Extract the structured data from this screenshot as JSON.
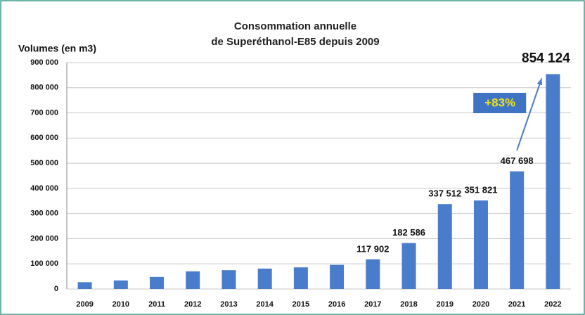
{
  "chart_data": {
    "type": "bar",
    "title": [
      "Consommation annuelle",
      "de Superéthanol-E85 depuis 2009"
    ],
    "y_label": "Volumes (en m3)",
    "categories": [
      "2009",
      "2010",
      "2011",
      "2012",
      "2013",
      "2014",
      "2015",
      "2016",
      "2017",
      "2018",
      "2019",
      "2020",
      "2021",
      "2022"
    ],
    "values": [
      27000,
      34000,
      48000,
      70000,
      75000,
      81000,
      86000,
      96000,
      117902,
      182586,
      337512,
      351821,
      467698,
      854124
    ],
    "value_labels": [
      null,
      null,
      null,
      null,
      null,
      null,
      null,
      null,
      "117 902",
      "182 586",
      "337 512",
      "351 821",
      "467 698",
      "854 124"
    ],
    "color": "#4a7ccc",
    "ylim": [
      0,
      900000
    ],
    "yticks": [
      0,
      {
        "value": 100000,
        "label": "100 000"
      },
      {
        "value": 200000,
        "label": "200 000"
      },
      {
        "value": 300000,
        "label": "300 000"
      },
      {
        "value": 400000,
        "label": "400 000"
      },
      {
        "value": 500000,
        "label": "500 000"
      },
      {
        "value": 600000,
        "label": "600 000"
      },
      {
        "value": 700000,
        "label": "700 000"
      },
      {
        "value": 800000,
        "label": "800 000"
      },
      {
        "value": 900000,
        "label": "900 000"
      }
    ],
    "grid": true,
    "annotation": "+83%"
  }
}
